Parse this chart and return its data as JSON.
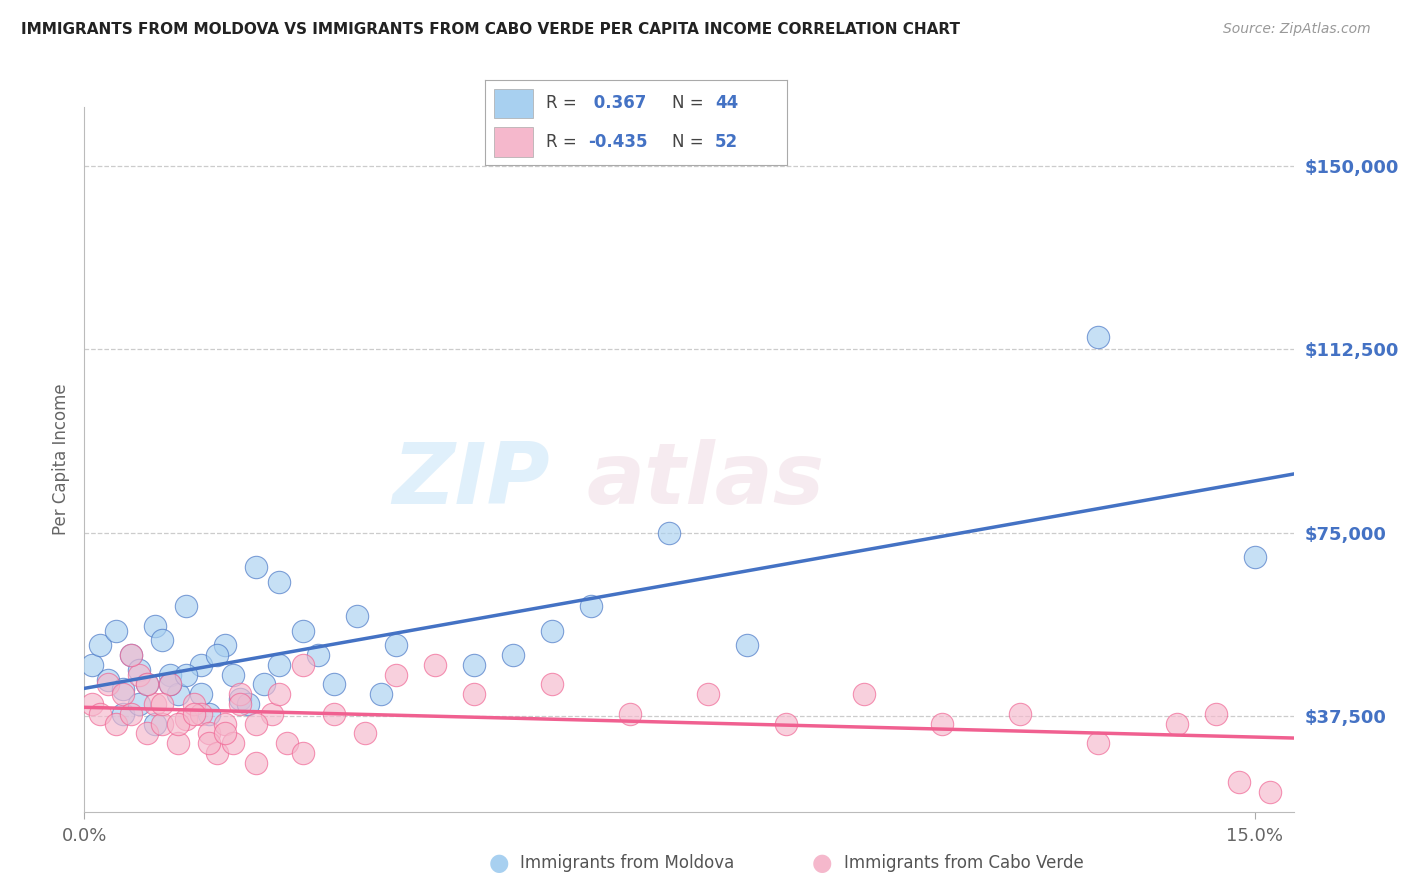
{
  "title": "IMMIGRANTS FROM MOLDOVA VS IMMIGRANTS FROM CABO VERDE PER CAPITA INCOME CORRELATION CHART",
  "source": "Source: ZipAtlas.com",
  "ylabel": "Per Capita Income",
  "ytick_labels": [
    "$37,500",
    "$75,000",
    "$112,500",
    "$150,000"
  ],
  "ytick_values": [
    37500,
    75000,
    112500,
    150000
  ],
  "ylim": [
    18000,
    162000
  ],
  "xlim": [
    0.0,
    0.155
  ],
  "xtick_labels": [
    "0.0%",
    "15.0%"
  ],
  "xtick_values": [
    0.0,
    0.15
  ],
  "legend_r1": " 0.367",
  "legend_n1": "44",
  "legend_r2": "-0.435",
  "legend_n2": "52",
  "color_moldova": "#A8D0F0",
  "color_cabo": "#F5B8CC",
  "color_line_moldova": "#4472C4",
  "color_line_cabo": "#F06090",
  "color_yticks": "#4472C4",
  "label_moldova": "Immigrants from Moldova",
  "label_cabo": "Immigrants from Cabo Verde",
  "moldova_x": [
    0.001,
    0.002,
    0.003,
    0.004,
    0.005,
    0.006,
    0.007,
    0.008,
    0.009,
    0.01,
    0.011,
    0.012,
    0.013,
    0.015,
    0.016,
    0.018,
    0.02,
    0.022,
    0.025,
    0.028,
    0.03,
    0.032,
    0.035,
    0.038,
    0.005,
    0.007,
    0.009,
    0.011,
    0.013,
    0.015,
    0.017,
    0.019,
    0.021,
    0.023,
    0.025,
    0.04,
    0.05,
    0.055,
    0.06,
    0.065,
    0.075,
    0.085,
    0.13,
    0.15
  ],
  "moldova_y": [
    48000,
    52000,
    45000,
    55000,
    43000,
    50000,
    47000,
    44000,
    56000,
    53000,
    46000,
    42000,
    60000,
    48000,
    38000,
    52000,
    41000,
    68000,
    65000,
    55000,
    50000,
    44000,
    58000,
    42000,
    38000,
    40000,
    36000,
    44000,
    46000,
    42000,
    50000,
    46000,
    40000,
    44000,
    48000,
    52000,
    48000,
    50000,
    55000,
    60000,
    75000,
    52000,
    115000,
    70000
  ],
  "cabo_x": [
    0.001,
    0.002,
    0.003,
    0.004,
    0.005,
    0.006,
    0.007,
    0.008,
    0.009,
    0.01,
    0.011,
    0.012,
    0.013,
    0.014,
    0.015,
    0.016,
    0.017,
    0.018,
    0.019,
    0.02,
    0.022,
    0.024,
    0.026,
    0.028,
    0.006,
    0.008,
    0.01,
    0.012,
    0.014,
    0.016,
    0.018,
    0.02,
    0.022,
    0.025,
    0.028,
    0.032,
    0.036,
    0.04,
    0.045,
    0.05,
    0.06,
    0.07,
    0.08,
    0.09,
    0.1,
    0.11,
    0.12,
    0.13,
    0.14,
    0.145,
    0.148,
    0.152
  ],
  "cabo_y": [
    40000,
    38000,
    44000,
    36000,
    42000,
    38000,
    46000,
    34000,
    40000,
    36000,
    44000,
    32000,
    37000,
    40000,
    38000,
    34000,
    30000,
    36000,
    32000,
    42000,
    28000,
    38000,
    32000,
    48000,
    50000,
    44000,
    40000,
    36000,
    38000,
    32000,
    34000,
    40000,
    36000,
    42000,
    30000,
    38000,
    34000,
    46000,
    48000,
    42000,
    44000,
    38000,
    42000,
    36000,
    42000,
    36000,
    38000,
    32000,
    36000,
    38000,
    24000,
    22000
  ]
}
